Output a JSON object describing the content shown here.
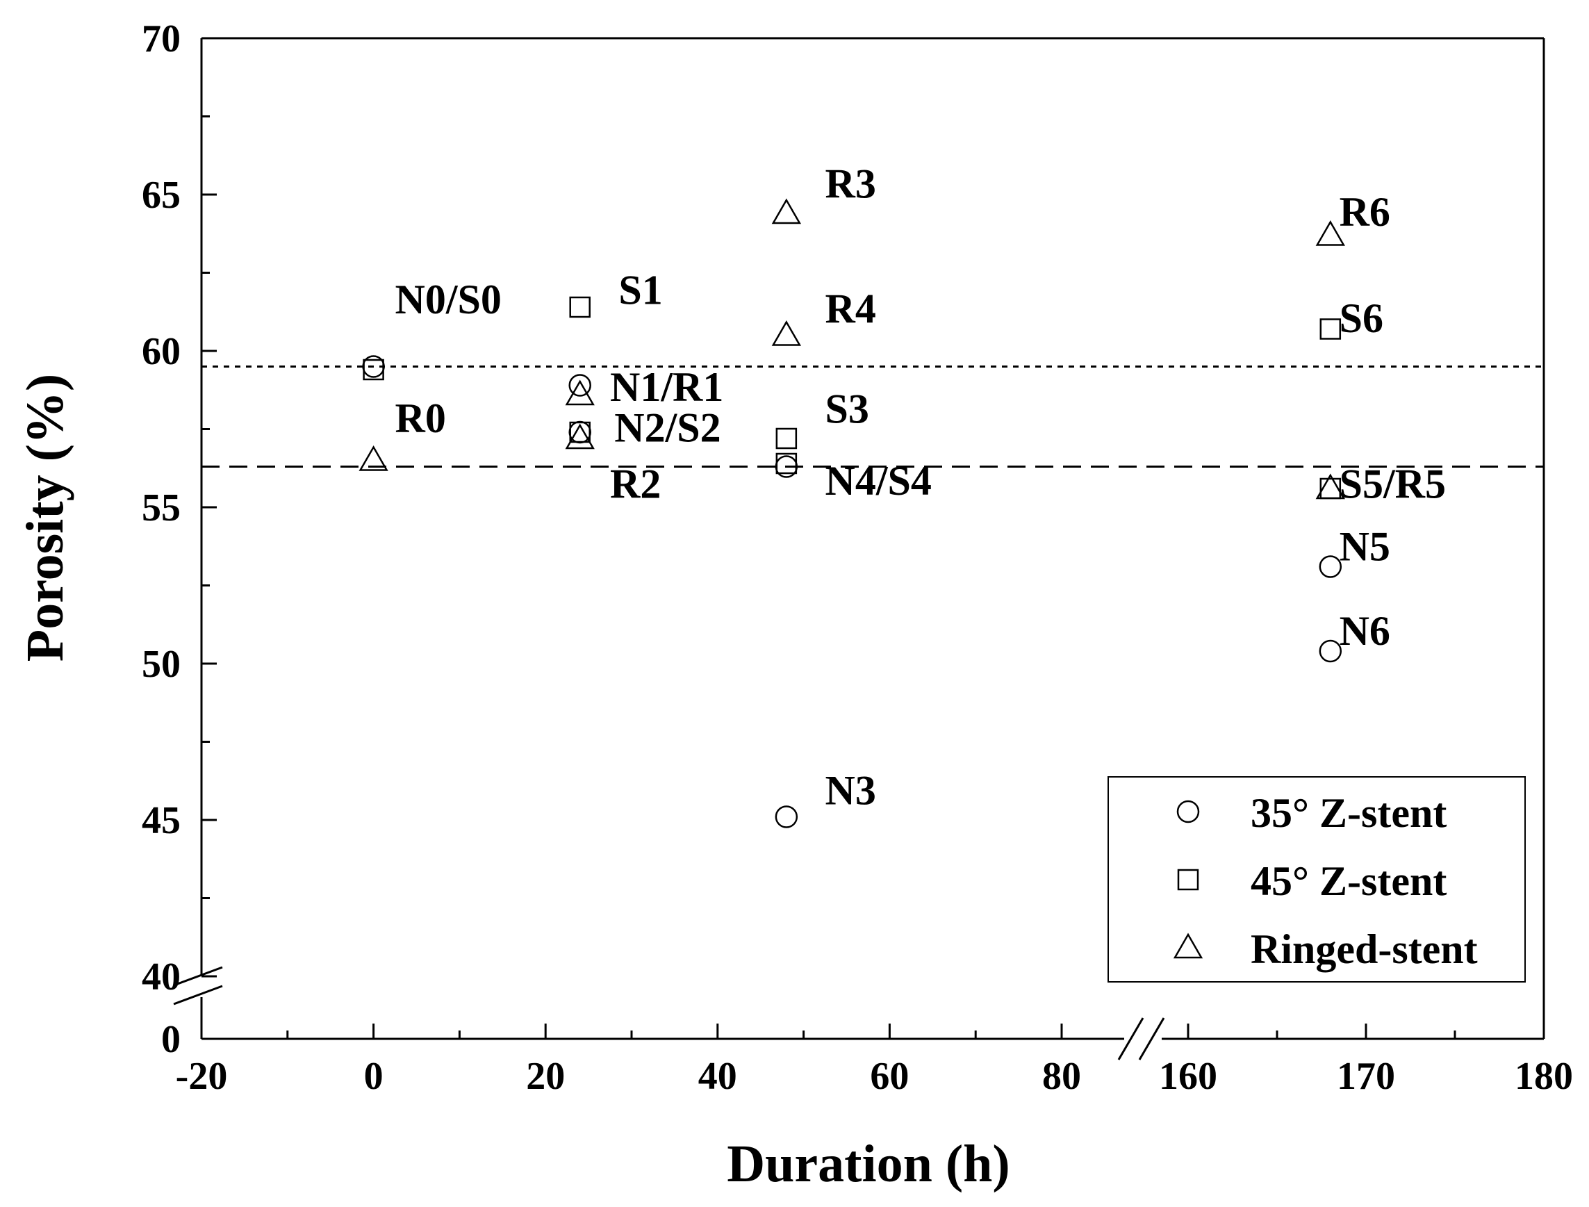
{
  "chart_data": {
    "type": "scatter",
    "title": "",
    "xlabel": "Duration  (h)",
    "ylabel": "Porosity (%)",
    "x_axis": {
      "broken": true,
      "segments": [
        {
          "range": [
            -20,
            140
          ],
          "ticks": [
            -20,
            0,
            20,
            40,
            60,
            80
          ],
          "tick_labels": [
            "-20",
            "0",
            "20",
            "40",
            "60",
            "80"
          ],
          "minor_step": 10
        },
        {
          "range": [
            160,
            180
          ],
          "ticks": [
            160,
            170,
            180
          ],
          "tick_labels": [
            "160",
            "170",
            "180"
          ],
          "minor_step": 5
        }
      ]
    },
    "y_axis": {
      "broken": true,
      "ylim": [
        40,
        70
      ],
      "ticks": [
        40,
        45,
        50,
        55,
        60,
        65,
        70
      ],
      "tick_labels": [
        "40",
        "45",
        "50",
        "55",
        "60",
        "65",
        "70"
      ],
      "zero_label": "0",
      "minor_step": 2.5
    },
    "series": [
      {
        "name": "35° Z-stent",
        "marker": "circle",
        "points": [
          {
            "x": 0,
            "y": 59.5
          },
          {
            "x": 24,
            "y": 58.9
          },
          {
            "x": 24,
            "y": 57.4
          },
          {
            "x": 48,
            "y": 45.1
          },
          {
            "x": 48,
            "y": 56.3
          },
          {
            "x": 168,
            "y": 53.1
          },
          {
            "x": 168,
            "y": 50.4
          }
        ]
      },
      {
        "name": "45° Z-stent",
        "marker": "square",
        "points": [
          {
            "x": 0,
            "y": 59.4
          },
          {
            "x": 24,
            "y": 61.4
          },
          {
            "x": 24,
            "y": 57.4
          },
          {
            "x": 48,
            "y": 57.2
          },
          {
            "x": 48,
            "y": 56.4
          },
          {
            "x": 168,
            "y": 55.6
          },
          {
            "x": 168,
            "y": 60.7
          }
        ]
      },
      {
        "name": "Ringed-stent",
        "marker": "triangle",
        "points": [
          {
            "x": 0,
            "y": 56.5
          },
          {
            "x": 24,
            "y": 58.6
          },
          {
            "x": 24,
            "y": 57.2
          },
          {
            "x": 48,
            "y": 64.4
          },
          {
            "x": 48,
            "y": 60.5
          },
          {
            "x": 168,
            "y": 55.6
          },
          {
            "x": 168,
            "y": 63.7
          }
        ]
      }
    ],
    "reference_lines": [
      {
        "y": 59.5,
        "style": "dotted"
      },
      {
        "y": 56.3,
        "style": "dashed"
      }
    ],
    "annotations": [
      {
        "text": "N0/S0",
        "x": 2.5,
        "y": 61.2
      },
      {
        "text": "R0",
        "x": 2.5,
        "y": 57.4
      },
      {
        "text": "S1",
        "x": 28.5,
        "y": 61.5
      },
      {
        "text": "N1/R1",
        "x": 27.5,
        "y": 58.4
      },
      {
        "text": "N2/S2",
        "x": 28.0,
        "y": 57.1
      },
      {
        "text": "R2",
        "x": 27.5,
        "y": 55.3
      },
      {
        "text": "R3",
        "x": 52.5,
        "y": 64.9
      },
      {
        "text": "R4",
        "x": 52.5,
        "y": 60.9
      },
      {
        "text": "S3",
        "x": 52.5,
        "y": 57.7
      },
      {
        "text": "N4/S4",
        "x": 52.5,
        "y": 55.4
      },
      {
        "text": "N3",
        "x": 52.5,
        "y": 45.5
      },
      {
        "text": "R6",
        "x": 168.5,
        "y": 64.0
      },
      {
        "text": "S6",
        "x": 168.5,
        "y": 60.6
      },
      {
        "text": "S5/R5",
        "x": 168.5,
        "y": 55.3
      },
      {
        "text": "N5",
        "x": 168.5,
        "y": 53.3
      },
      {
        "text": "N6",
        "x": 168.5,
        "y": 50.6
      }
    ],
    "legend": {
      "position": "bottom-right",
      "entries": [
        "35° Z-stent",
        "45° Z-stent",
        "Ringed-stent"
      ]
    },
    "grid": false
  }
}
